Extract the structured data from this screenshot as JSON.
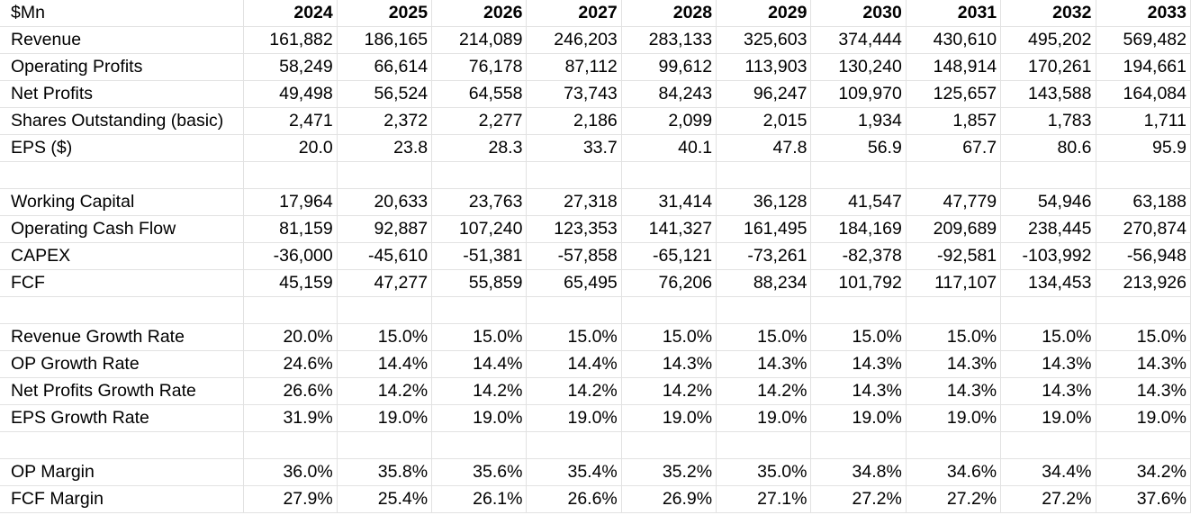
{
  "unit_label": "$Mn",
  "years": [
    "2024",
    "2025",
    "2026",
    "2027",
    "2028",
    "2029",
    "2030",
    "2031",
    "2032",
    "2033"
  ],
  "rows": [
    {
      "label": "Revenue",
      "values": [
        "161,882",
        "186,165",
        "214,089",
        "246,203",
        "283,133",
        "325,603",
        "374,444",
        "430,610",
        "495,202",
        "569,482"
      ]
    },
    {
      "label": "Operating Profits",
      "values": [
        "58,249",
        "66,614",
        "76,178",
        "87,112",
        "99,612",
        "113,903",
        "130,240",
        "148,914",
        "170,261",
        "194,661"
      ]
    },
    {
      "label": "Net Profits",
      "values": [
        "49,498",
        "56,524",
        "64,558",
        "73,743",
        "84,243",
        "96,247",
        "109,970",
        "125,657",
        "143,588",
        "164,084"
      ]
    },
    {
      "label": "Shares Outstanding (basic)",
      "values": [
        "2,471",
        "2,372",
        "2,277",
        "2,186",
        "2,099",
        "2,015",
        "1,934",
        "1,857",
        "1,783",
        "1,711"
      ]
    },
    {
      "label": "EPS ($)",
      "values": [
        "20.0",
        "23.8",
        "28.3",
        "33.7",
        "40.1",
        "47.8",
        "56.9",
        "67.7",
        "80.6",
        "95.9"
      ]
    },
    {
      "label": "",
      "values": [
        "",
        "",
        "",
        "",
        "",
        "",
        "",
        "",
        "",
        ""
      ]
    },
    {
      "label": "Working Capital",
      "values": [
        "17,964",
        "20,633",
        "23,763",
        "27,318",
        "31,414",
        "36,128",
        "41,547",
        "47,779",
        "54,946",
        "63,188"
      ]
    },
    {
      "label": "Operating Cash Flow",
      "values": [
        "81,159",
        "92,887",
        "107,240",
        "123,353",
        "141,327",
        "161,495",
        "184,169",
        "209,689",
        "238,445",
        "270,874"
      ]
    },
    {
      "label": "CAPEX",
      "values": [
        "-36,000",
        "-45,610",
        "-51,381",
        "-57,858",
        "-65,121",
        "-73,261",
        "-82,378",
        "-92,581",
        "-103,992",
        "-56,948"
      ]
    },
    {
      "label": "FCF",
      "values": [
        "45,159",
        "47,277",
        "55,859",
        "65,495",
        "76,206",
        "88,234",
        "101,792",
        "117,107",
        "134,453",
        "213,926"
      ]
    },
    {
      "label": "",
      "values": [
        "",
        "",
        "",
        "",
        "",
        "",
        "",
        "",
        "",
        ""
      ]
    },
    {
      "label": "Revenue Growth Rate",
      "values": [
        "20.0%",
        "15.0%",
        "15.0%",
        "15.0%",
        "15.0%",
        "15.0%",
        "15.0%",
        "15.0%",
        "15.0%",
        "15.0%"
      ]
    },
    {
      "label": "OP Growth Rate",
      "values": [
        "24.6%",
        "14.4%",
        "14.4%",
        "14.4%",
        "14.3%",
        "14.3%",
        "14.3%",
        "14.3%",
        "14.3%",
        "14.3%"
      ]
    },
    {
      "label": "Net Profits Growth Rate",
      "values": [
        "26.6%",
        "14.2%",
        "14.2%",
        "14.2%",
        "14.2%",
        "14.2%",
        "14.3%",
        "14.3%",
        "14.3%",
        "14.3%"
      ]
    },
    {
      "label": "EPS Growth Rate",
      "values": [
        "31.9%",
        "19.0%",
        "19.0%",
        "19.0%",
        "19.0%",
        "19.0%",
        "19.0%",
        "19.0%",
        "19.0%",
        "19.0%"
      ]
    },
    {
      "label": "",
      "values": [
        "",
        "",
        "",
        "",
        "",
        "",
        "",
        "",
        "",
        ""
      ]
    },
    {
      "label": "OP Margin",
      "values": [
        "36.0%",
        "35.8%",
        "35.6%",
        "35.4%",
        "35.2%",
        "35.0%",
        "34.8%",
        "34.6%",
        "34.4%",
        "34.2%"
      ]
    },
    {
      "label": "FCF Margin",
      "values": [
        "27.9%",
        "25.4%",
        "26.1%",
        "26.6%",
        "26.9%",
        "27.1%",
        "27.2%",
        "27.2%",
        "27.2%",
        "37.6%"
      ]
    }
  ]
}
